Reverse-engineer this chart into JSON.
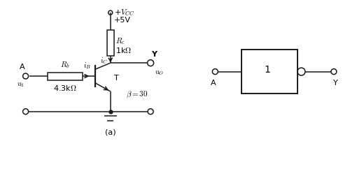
{
  "bg_color": "#ffffff",
  "line_color": "#1a1a1a",
  "line_width": 1.1,
  "font_size": 8,
  "fig_width": 5.0,
  "fig_height": 2.45,
  "dpi": 100,
  "vcc_label": "+$V_{CC}$",
  "v5_label": "+5V",
  "rc_label": "$R_c$",
  "rc_val": "1k$\\Omega$",
  "rb_label": "$R_b$",
  "rb_val": "4.3k$\\Omega$",
  "ic_label": "$i_C$",
  "ib_label": "$i_B$",
  "T_label": "T",
  "Y_label": "Y",
  "uo_label": "$u_O$",
  "A_label": "A",
  "u1_label": "$u_1$",
  "beta_label": "$\\beta = 30$",
  "subfig_label": "(a)",
  "gate_label": "1"
}
